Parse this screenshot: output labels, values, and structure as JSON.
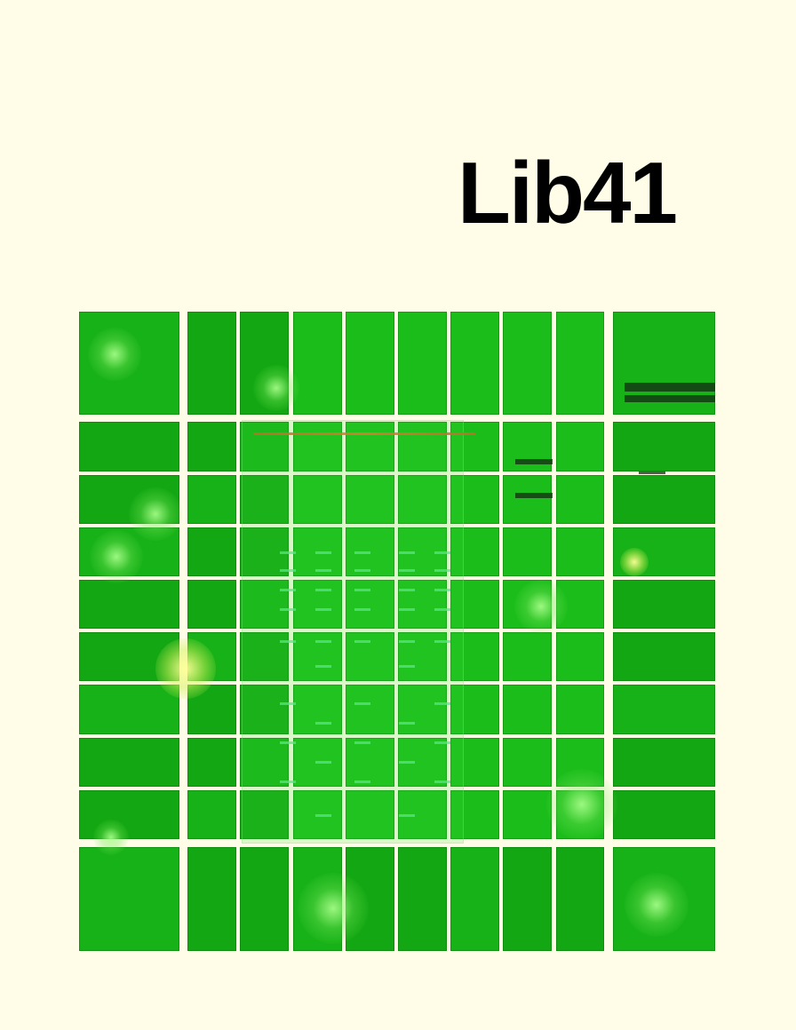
{
  "title": "Lib41",
  "colors": {
    "background": "#fffde8",
    "tile_green": "#13a813",
    "tile_light": "#1bbd1b",
    "title_text": "#000000"
  },
  "tiles": {
    "rows": 10,
    "columns": 10
  }
}
